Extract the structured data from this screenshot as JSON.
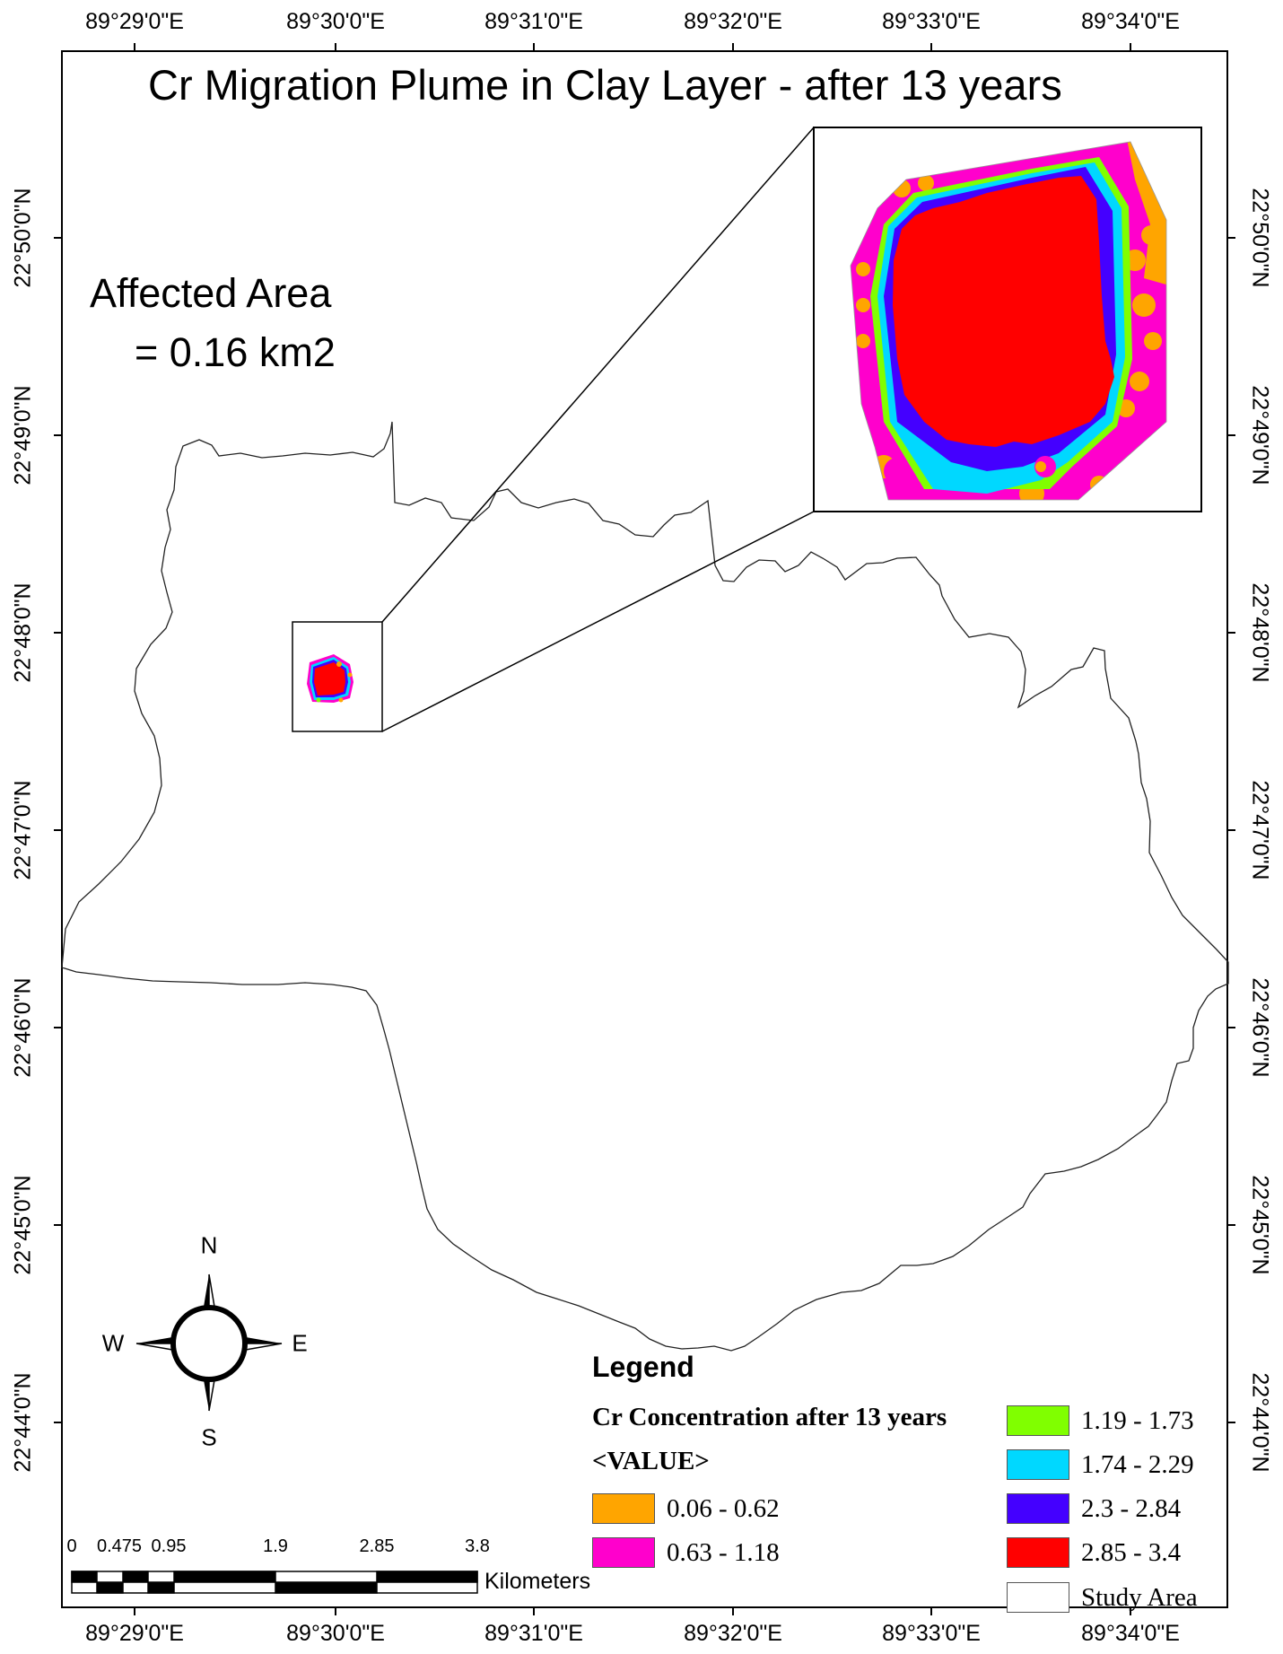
{
  "map": {
    "title": "Cr Migration Plume in Clay Layer - after 13 years",
    "affected_area_label": "Affected Area",
    "affected_area_value": "= 0.16 km2"
  },
  "grid": {
    "longitude_labels": [
      "89°29'0\"E",
      "89°30'0\"E",
      "89°31'0\"E",
      "89°32'0\"E",
      "89°33'0\"E",
      "89°34'0\"E"
    ],
    "latitude_labels": [
      "22°50'0\"N",
      "22°49'0\"N",
      "22°48'0\"N",
      "22°47'0\"N",
      "22°46'0\"N",
      "22°45'0\"N",
      "22°44'0\"N"
    ]
  },
  "compass": {
    "north": "N",
    "south": "S",
    "east": "E",
    "west": "W"
  },
  "legend": {
    "title": "Legend",
    "heading": "Cr Concentration after 13 years",
    "field": "<VALUE>",
    "classes": [
      {
        "label": "0.06 - 0.62",
        "color": "#ffa500"
      },
      {
        "label": "0.63 - 1.18",
        "color": "#ff00cc"
      },
      {
        "label": "1.19 - 1.73",
        "color": "#80ff00"
      },
      {
        "label": "1.74 - 2.29",
        "color": "#00d8ff"
      },
      {
        "label": "2.3 - 2.84",
        "color": "#4400ff"
      },
      {
        "label": "2.85 - 3.4",
        "color": "#ff0000"
      }
    ],
    "study_area_label": "Study Area"
  },
  "scale_bar": {
    "labels": [
      "0",
      "0.475",
      "0.95",
      "1.9",
      "2.85",
      "3.8"
    ],
    "units": "Kilometers"
  }
}
